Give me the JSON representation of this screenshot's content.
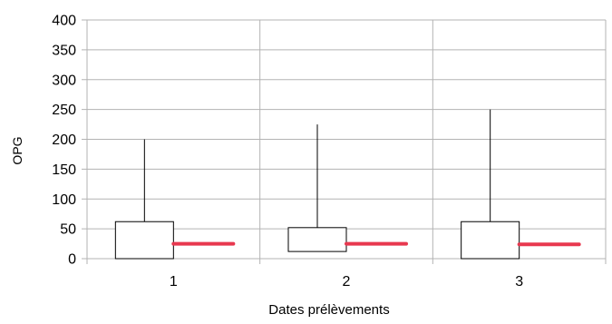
{
  "chart_data": {
    "type": "box",
    "xlabel": "Dates prélèvements",
    "ylabel": "OPG",
    "ylim": [
      0,
      400
    ],
    "y_ticks": [
      0,
      50,
      100,
      150,
      200,
      250,
      300,
      350,
      400
    ],
    "categories": [
      "1",
      "2",
      "3"
    ],
    "boxes": [
      {
        "category": "1",
        "whisker_low": 0,
        "q1": 0,
        "q3": 62,
        "whisker_high": 200,
        "marker": 25
      },
      {
        "category": "2",
        "whisker_low": 12,
        "q1": 12,
        "q3": 52,
        "whisker_high": 225,
        "marker": 25
      },
      {
        "category": "3",
        "whisker_low": 0,
        "q1": 0,
        "q3": 62,
        "whisker_high": 250,
        "marker": 24
      }
    ],
    "grid": true,
    "colors": {
      "box_fill": "#ffffff",
      "box_stroke": "#000000",
      "marker": "#e8384f",
      "grid": "#b3b3b3"
    }
  }
}
